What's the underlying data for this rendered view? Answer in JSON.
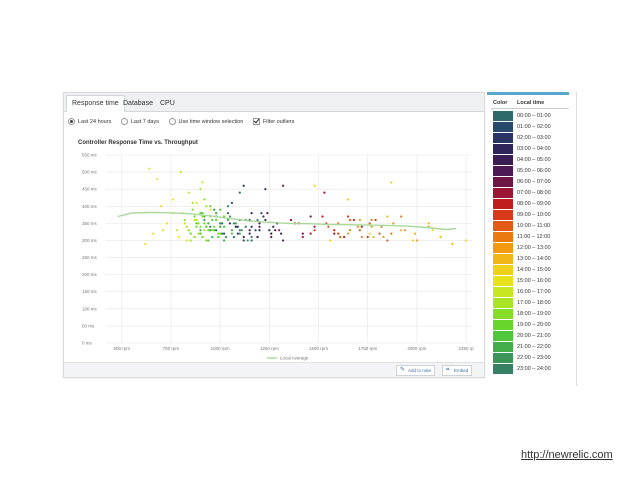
{
  "tabs": [
    {
      "label": "Response time",
      "active": true
    },
    {
      "label": "Database",
      "active": false
    },
    {
      "label": "CPU",
      "active": false
    }
  ],
  "options": {
    "radios": [
      {
        "label": "Last 24 hours",
        "selected": true
      },
      {
        "label": "Last 7 days",
        "selected": false
      },
      {
        "label": "Use time window selection",
        "selected": false
      }
    ],
    "filter": {
      "label": "Filter outliers",
      "checked": true
    }
  },
  "footer": {
    "add_to_note": "Add to note",
    "embed": "Embed"
  },
  "legend": {
    "color_header": "Color",
    "time_header": "Local time",
    "items": [
      {
        "label": "00:00 – 01:00",
        "color": "#2e6b68"
      },
      {
        "label": "01:00 – 02:00",
        "color": "#274a6c"
      },
      {
        "label": "02:00 – 03:00",
        "color": "#283463"
      },
      {
        "label": "03:00 – 04:00",
        "color": "#2f2459"
      },
      {
        "label": "04:00 – 05:00",
        "color": "#3b1d56"
      },
      {
        "label": "05:00 – 06:00",
        "color": "#4d1a55"
      },
      {
        "label": "06:00 – 07:00",
        "color": "#6e1745"
      },
      {
        "label": "07:00 – 08:00",
        "color": "#9b1634"
      },
      {
        "label": "08:00 – 09:00",
        "color": "#c01e1e"
      },
      {
        "label": "09:00 – 10:00",
        "color": "#d8391a"
      },
      {
        "label": "10:00 – 11:00",
        "color": "#e25a15"
      },
      {
        "label": "11:00 – 12:00",
        "color": "#ea7a10"
      },
      {
        "label": "12:00 – 13:00",
        "color": "#f19a10"
      },
      {
        "label": "13:00 – 14:00",
        "color": "#f2b616"
      },
      {
        "label": "14:00 – 15:00",
        "color": "#efd01a"
      },
      {
        "label": "15:00 – 16:00",
        "color": "#e8e21c"
      },
      {
        "label": "16:00 – 17:00",
        "color": "#c9e621"
      },
      {
        "label": "17:00 – 18:00",
        "color": "#a8e325"
      },
      {
        "label": "18:00 – 19:00",
        "color": "#86dd28"
      },
      {
        "label": "19:00 – 20:00",
        "color": "#66d52c"
      },
      {
        "label": "20:00 – 21:00",
        "color": "#50c63a"
      },
      {
        "label": "21:00 – 22:00",
        "color": "#43ad4c"
      },
      {
        "label": "22:00 – 23:00",
        "color": "#3c965a"
      },
      {
        "label": "23:00 – 24:00",
        "color": "#367f62"
      }
    ]
  },
  "source_url": "http://newrelic.com",
  "chart_data": {
    "type": "scatter",
    "title": "Controller Response Time vs. Throughput",
    "xlabel": "",
    "ylabel": "",
    "xlim": [
      420,
      2280
    ],
    "ylim": [
      0,
      550
    ],
    "x_ticks": [
      {
        "value": 500,
        "label": "500 rpm"
      },
      {
        "value": 750,
        "label": "750 rpm"
      },
      {
        "value": 1000,
        "label": "1000 rpm"
      },
      {
        "value": 1250,
        "label": "1250 rpm"
      },
      {
        "value": 1500,
        "label": "1500 rpm"
      },
      {
        "value": 1750,
        "label": "1750 rpm"
      },
      {
        "value": 2000,
        "label": "2000 rpm"
      },
      {
        "value": 2250,
        "label": "2250 rp"
      }
    ],
    "y_ticks": [
      {
        "value": 0,
        "label": "0 ms"
      },
      {
        "value": 50,
        "label": "50 ms"
      },
      {
        "value": 100,
        "label": "100 ms"
      },
      {
        "value": 150,
        "label": "150 ms"
      },
      {
        "value": 200,
        "label": "200 ms"
      },
      {
        "value": 250,
        "label": "250 ms"
      },
      {
        "value": 300,
        "label": "300 ms"
      },
      {
        "value": 350,
        "label": "350 ms"
      },
      {
        "value": 400,
        "label": "400 ms"
      },
      {
        "value": 450,
        "label": "450 ms"
      },
      {
        "value": 500,
        "label": "500 ms"
      },
      {
        "value": 550,
        "label": "550 ms"
      }
    ],
    "grid": true,
    "legend": {
      "label": "Local Average",
      "placement": "bottom-center",
      "color": "#a9d99a"
    },
    "average_line": {
      "name": "Local Average",
      "x": [
        480,
        550,
        650,
        750,
        850,
        950,
        1050,
        1150,
        1250,
        1350,
        1450,
        1550,
        1650,
        1750,
        1850,
        1950,
        2050,
        2150,
        2200
      ],
      "y": [
        370,
        380,
        382,
        381,
        378,
        372,
        364,
        357,
        353,
        350,
        349,
        347,
        346,
        345,
        344,
        342,
        338,
        332,
        335
      ]
    },
    "clusters": [
      {
        "hour": "15:00 – 16:00",
        "x": [
          620,
          640,
          660,
          680,
          700,
          710,
          730,
          760,
          790,
          810,
          830
        ],
        "y": [
          290,
          510,
          320,
          480,
          400,
          330,
          350,
          420,
          310,
          380,
          300
        ]
      },
      {
        "hour": "16:00 – 17:00",
        "x": [
          760,
          780,
          800,
          820,
          840,
          850,
          870,
          880,
          900,
          910,
          930,
          950
        ],
        "y": [
          380,
          330,
          500,
          350,
          440,
          300,
          360,
          410,
          320,
          470,
          340,
          390
        ]
      },
      {
        "hour": "17:00 – 18:00",
        "x": [
          830,
          850,
          860,
          880,
          890,
          900,
          910,
          920,
          930,
          940,
          960,
          980,
          1000
        ],
        "y": [
          340,
          300,
          410,
          360,
          320,
          450,
          370,
          330,
          400,
          350,
          310,
          380,
          340
        ]
      },
      {
        "hour": "18:00 – 19:00",
        "x": [
          820,
          840,
          860,
          870,
          890,
          900,
          920,
          930,
          950,
          960,
          980,
          990,
          1010
        ],
        "y": [
          360,
          330,
          390,
          310,
          350,
          340,
          420,
          300,
          370,
          330,
          360,
          320,
          350
        ]
      },
      {
        "hour": "19:00 – 20:00",
        "x": [
          850,
          870,
          880,
          900,
          910,
          920,
          940,
          950,
          970,
          980,
          1000,
          1020
        ],
        "y": [
          320,
          370,
          340,
          380,
          310,
          350,
          330,
          400,
          340,
          360,
          320,
          370
        ]
      },
      {
        "hour": "20:00 – 21:00",
        "x": [
          880,
          900,
          910,
          930,
          940,
          960,
          970,
          990,
          1000,
          1020,
          1040,
          1060
        ],
        "y": [
          350,
          320,
          380,
          340,
          300,
          360,
          330,
          310,
          390,
          340,
          360,
          320
        ]
      },
      {
        "hour": "21:00 – 22:00",
        "x": [
          900,
          920,
          940,
          960,
          980,
          1000,
          1020,
          1040,
          1060,
          1080,
          1100
        ],
        "y": [
          330,
          370,
          350,
          310,
          380,
          340,
          300,
          360,
          330,
          350,
          320
        ]
      },
      {
        "hour": "22:00 – 23:00",
        "x": [
          920,
          950,
          970,
          1000,
          1030,
          1050,
          1080,
          1110,
          1140
        ],
        "y": [
          360,
          330,
          390,
          350,
          310,
          370,
          340,
          330,
          300
        ]
      },
      {
        "hour": "23:00 – 24:00",
        "x": [
          950,
          980,
          1010,
          1040,
          1070,
          1100,
          1130,
          1160
        ],
        "y": [
          340,
          370,
          320,
          400,
          350,
          330,
          360,
          310
        ]
      },
      {
        "hour": "00:00 – 01:00",
        "x": [
          980,
          1010,
          1040,
          1070,
          1100,
          1130,
          1160,
          1190
        ],
        "y": [
          330,
          350,
          380,
          310,
          440,
          340,
          300,
          360
        ]
      },
      {
        "hour": "01:00 – 02:00",
        "x": [
          1020,
          1060,
          1090,
          1120,
          1150,
          1180,
          1210
        ],
        "y": [
          320,
          410,
          340,
          300,
          360,
          330,
          380
        ]
      },
      {
        "hour": "02:00 – 03:00",
        "x": [
          1050,
          1090,
          1120,
          1160,
          1190,
          1220,
          1250
        ],
        "y": [
          350,
          320,
          460,
          340,
          310,
          370,
          330
        ]
      },
      {
        "hour": "03:00 – 04:00",
        "x": [
          1080,
          1120,
          1160,
          1200,
          1230,
          1260,
          1290
        ],
        "y": [
          340,
          310,
          380,
          330,
          360,
          320,
          350
        ]
      },
      {
        "hour": "04:00 – 05:00",
        "x": [
          1100,
          1150,
          1190,
          1230,
          1270,
          1310
        ],
        "y": [
          360,
          330,
          310,
          450,
          340,
          320
        ]
      },
      {
        "hour": "05:00 – 06:00",
        "x": [
          1150,
          1200,
          1240,
          1280,
          1320,
          1360
        ],
        "y": [
          320,
          350,
          380,
          330,
          300,
          360
        ]
      },
      {
        "hour": "06:00 – 07:00",
        "x": [
          1200,
          1260,
          1320,
          1380,
          1420,
          1460
        ],
        "y": [
          340,
          310,
          460,
          350,
          320,
          370
        ]
      },
      {
        "hour": "07:00 – 08:00",
        "x": [
          1300,
          1360,
          1420,
          1480,
          1530,
          1580
        ],
        "y": [
          330,
          360,
          310,
          340,
          440,
          320
        ]
      },
      {
        "hour": "08:00 – 09:00",
        "x": [
          1400,
          1460,
          1520,
          1580,
          1630,
          1680,
          1720
        ],
        "y": [
          350,
          320,
          370,
          330,
          310,
          360,
          340
        ]
      },
      {
        "hour": "09:00 – 10:00",
        "x": [
          1480,
          1540,
          1600,
          1650,
          1700,
          1750,
          1790
        ],
        "y": [
          330,
          350,
          320,
          370,
          340,
          310,
          360
        ]
      },
      {
        "hour": "10:00 – 11:00",
        "x": [
          1550,
          1610,
          1660,
          1710,
          1760,
          1810,
          1850
        ],
        "y": [
          340,
          310,
          360,
          330,
          350,
          320,
          300
        ]
      },
      {
        "hour": "11:00 – 12:00",
        "x": [
          1600,
          1660,
          1720,
          1770,
          1820,
          1870,
          1920
        ],
        "y": [
          350,
          330,
          310,
          360,
          340,
          320,
          370
        ]
      },
      {
        "hour": "12:00 – 13:00",
        "x": [
          1650,
          1710,
          1770,
          1830,
          1880,
          1940,
          2000,
          2060
        ],
        "y": [
          320,
          360,
          340,
          310,
          350,
          330,
          300,
          340
        ]
      },
      {
        "hour": "13:00 – 14:00",
        "x": [
          1700,
          1780,
          1850,
          1920,
          1990,
          2060,
          2120,
          2180
        ],
        "y": [
          340,
          310,
          370,
          330,
          320,
          350,
          310,
          290
        ]
      },
      {
        "hour": "14:00 – 15:00",
        "x": [
          1480,
          1560,
          1650,
          1760,
          1870,
          1980,
          2080,
          2250
        ],
        "y": [
          460,
          300,
          420,
          320,
          470,
          300,
          330,
          300
        ]
      }
    ]
  }
}
